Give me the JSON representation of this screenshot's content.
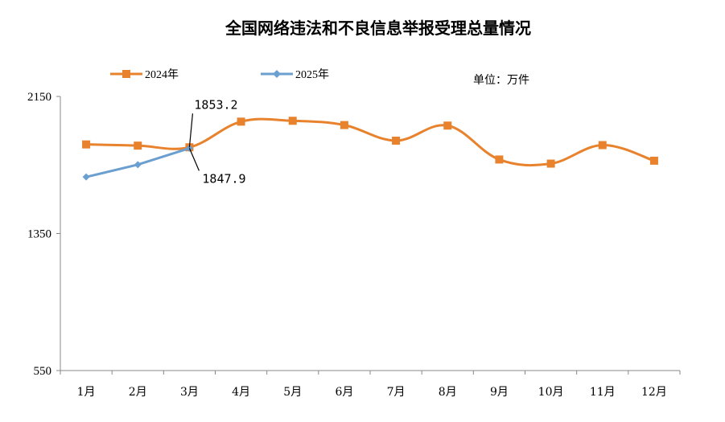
{
  "chart_data": {
    "type": "line",
    "title": "全国网络违法和不良信息举报受理总量情况",
    "unit_note": "单位：万件",
    "categories": [
      "1月",
      "2月",
      "3月",
      "4月",
      "5月",
      "6月",
      "7月",
      "8月",
      "9月",
      "10月",
      "11月",
      "12月"
    ],
    "series": [
      {
        "name": "2024年",
        "color": "#E8822D",
        "marker": "square",
        "values": [
          1870,
          1863,
          1853.2,
          2003,
          2008,
          1983,
          1892,
          1980,
          1782,
          1758,
          1866,
          1775
        ]
      },
      {
        "name": "2025年",
        "color": "#6B9FD0",
        "marker": "diamond",
        "values": [
          1680,
          1752,
          1847.9,
          null,
          null,
          null,
          null,
          null,
          null,
          null,
          null,
          null
        ]
      }
    ],
    "ylim": [
      550,
      2150
    ],
    "yticks": [
      550,
      1350,
      2150
    ],
    "grid": false,
    "legend_position": "top-left",
    "annotations": [
      {
        "text": "1853.2",
        "series": 0,
        "index": 2
      },
      {
        "text": "1847.9",
        "series": 1,
        "index": 2
      }
    ]
  }
}
